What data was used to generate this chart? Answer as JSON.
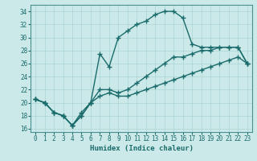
{
  "title": "",
  "xlabel": "Humidex (Indice chaleur)",
  "ylabel": "",
  "xlim": [
    -0.5,
    23.5
  ],
  "ylim": [
    15.5,
    35.0
  ],
  "yticks": [
    16,
    18,
    20,
    22,
    24,
    26,
    28,
    30,
    32,
    34
  ],
  "xticks": [
    0,
    1,
    2,
    3,
    4,
    5,
    6,
    7,
    8,
    9,
    10,
    11,
    12,
    13,
    14,
    15,
    16,
    17,
    18,
    19,
    20,
    21,
    22,
    23
  ],
  "bg_color": "#cce9e9",
  "grid_color": "#aad4d4",
  "line_color": "#1a6b6b",
  "line1_x": [
    0,
    1,
    2,
    3,
    4,
    5,
    6,
    7,
    8,
    9,
    10,
    11,
    12,
    13,
    14,
    15,
    16,
    17,
    18,
    19,
    20,
    21,
    22,
    23
  ],
  "line1_y": [
    20.5,
    20.0,
    18.5,
    18.0,
    16.5,
    18.0,
    20.0,
    21.0,
    21.5,
    21.0,
    21.0,
    21.5,
    22.0,
    22.5,
    23.0,
    23.5,
    24.0,
    24.5,
    25.0,
    25.5,
    26.0,
    26.5,
    27.0,
    26.0
  ],
  "line2_x": [
    0,
    1,
    2,
    3,
    4,
    5,
    6,
    7,
    8,
    9,
    10,
    11,
    12,
    13,
    14,
    15,
    16,
    17,
    18,
    19,
    20,
    21,
    22,
    23
  ],
  "line2_y": [
    20.5,
    20.0,
    18.5,
    18.0,
    16.5,
    18.0,
    20.0,
    22.0,
    22.0,
    21.5,
    22.0,
    23.0,
    24.0,
    25.0,
    26.0,
    27.0,
    27.0,
    27.5,
    28.0,
    28.0,
    28.5,
    28.5,
    28.5,
    26.0
  ],
  "line3_x": [
    0,
    1,
    2,
    3,
    4,
    5,
    6,
    7,
    8,
    9,
    10,
    11,
    12,
    13,
    14,
    15,
    16,
    17,
    18,
    19,
    20,
    21,
    22,
    23
  ],
  "line3_y": [
    20.5,
    20.0,
    18.5,
    18.0,
    16.5,
    18.5,
    20.0,
    27.5,
    25.5,
    30.0,
    31.0,
    32.0,
    32.5,
    33.5,
    34.0,
    34.0,
    33.0,
    29.0,
    28.5,
    28.5,
    28.5,
    28.5,
    28.5,
    26.0
  ],
  "marker": "+",
  "marker_size": 4,
  "line_width": 1.0,
  "tick_fontsize": 5.5,
  "label_fontsize": 6.5
}
